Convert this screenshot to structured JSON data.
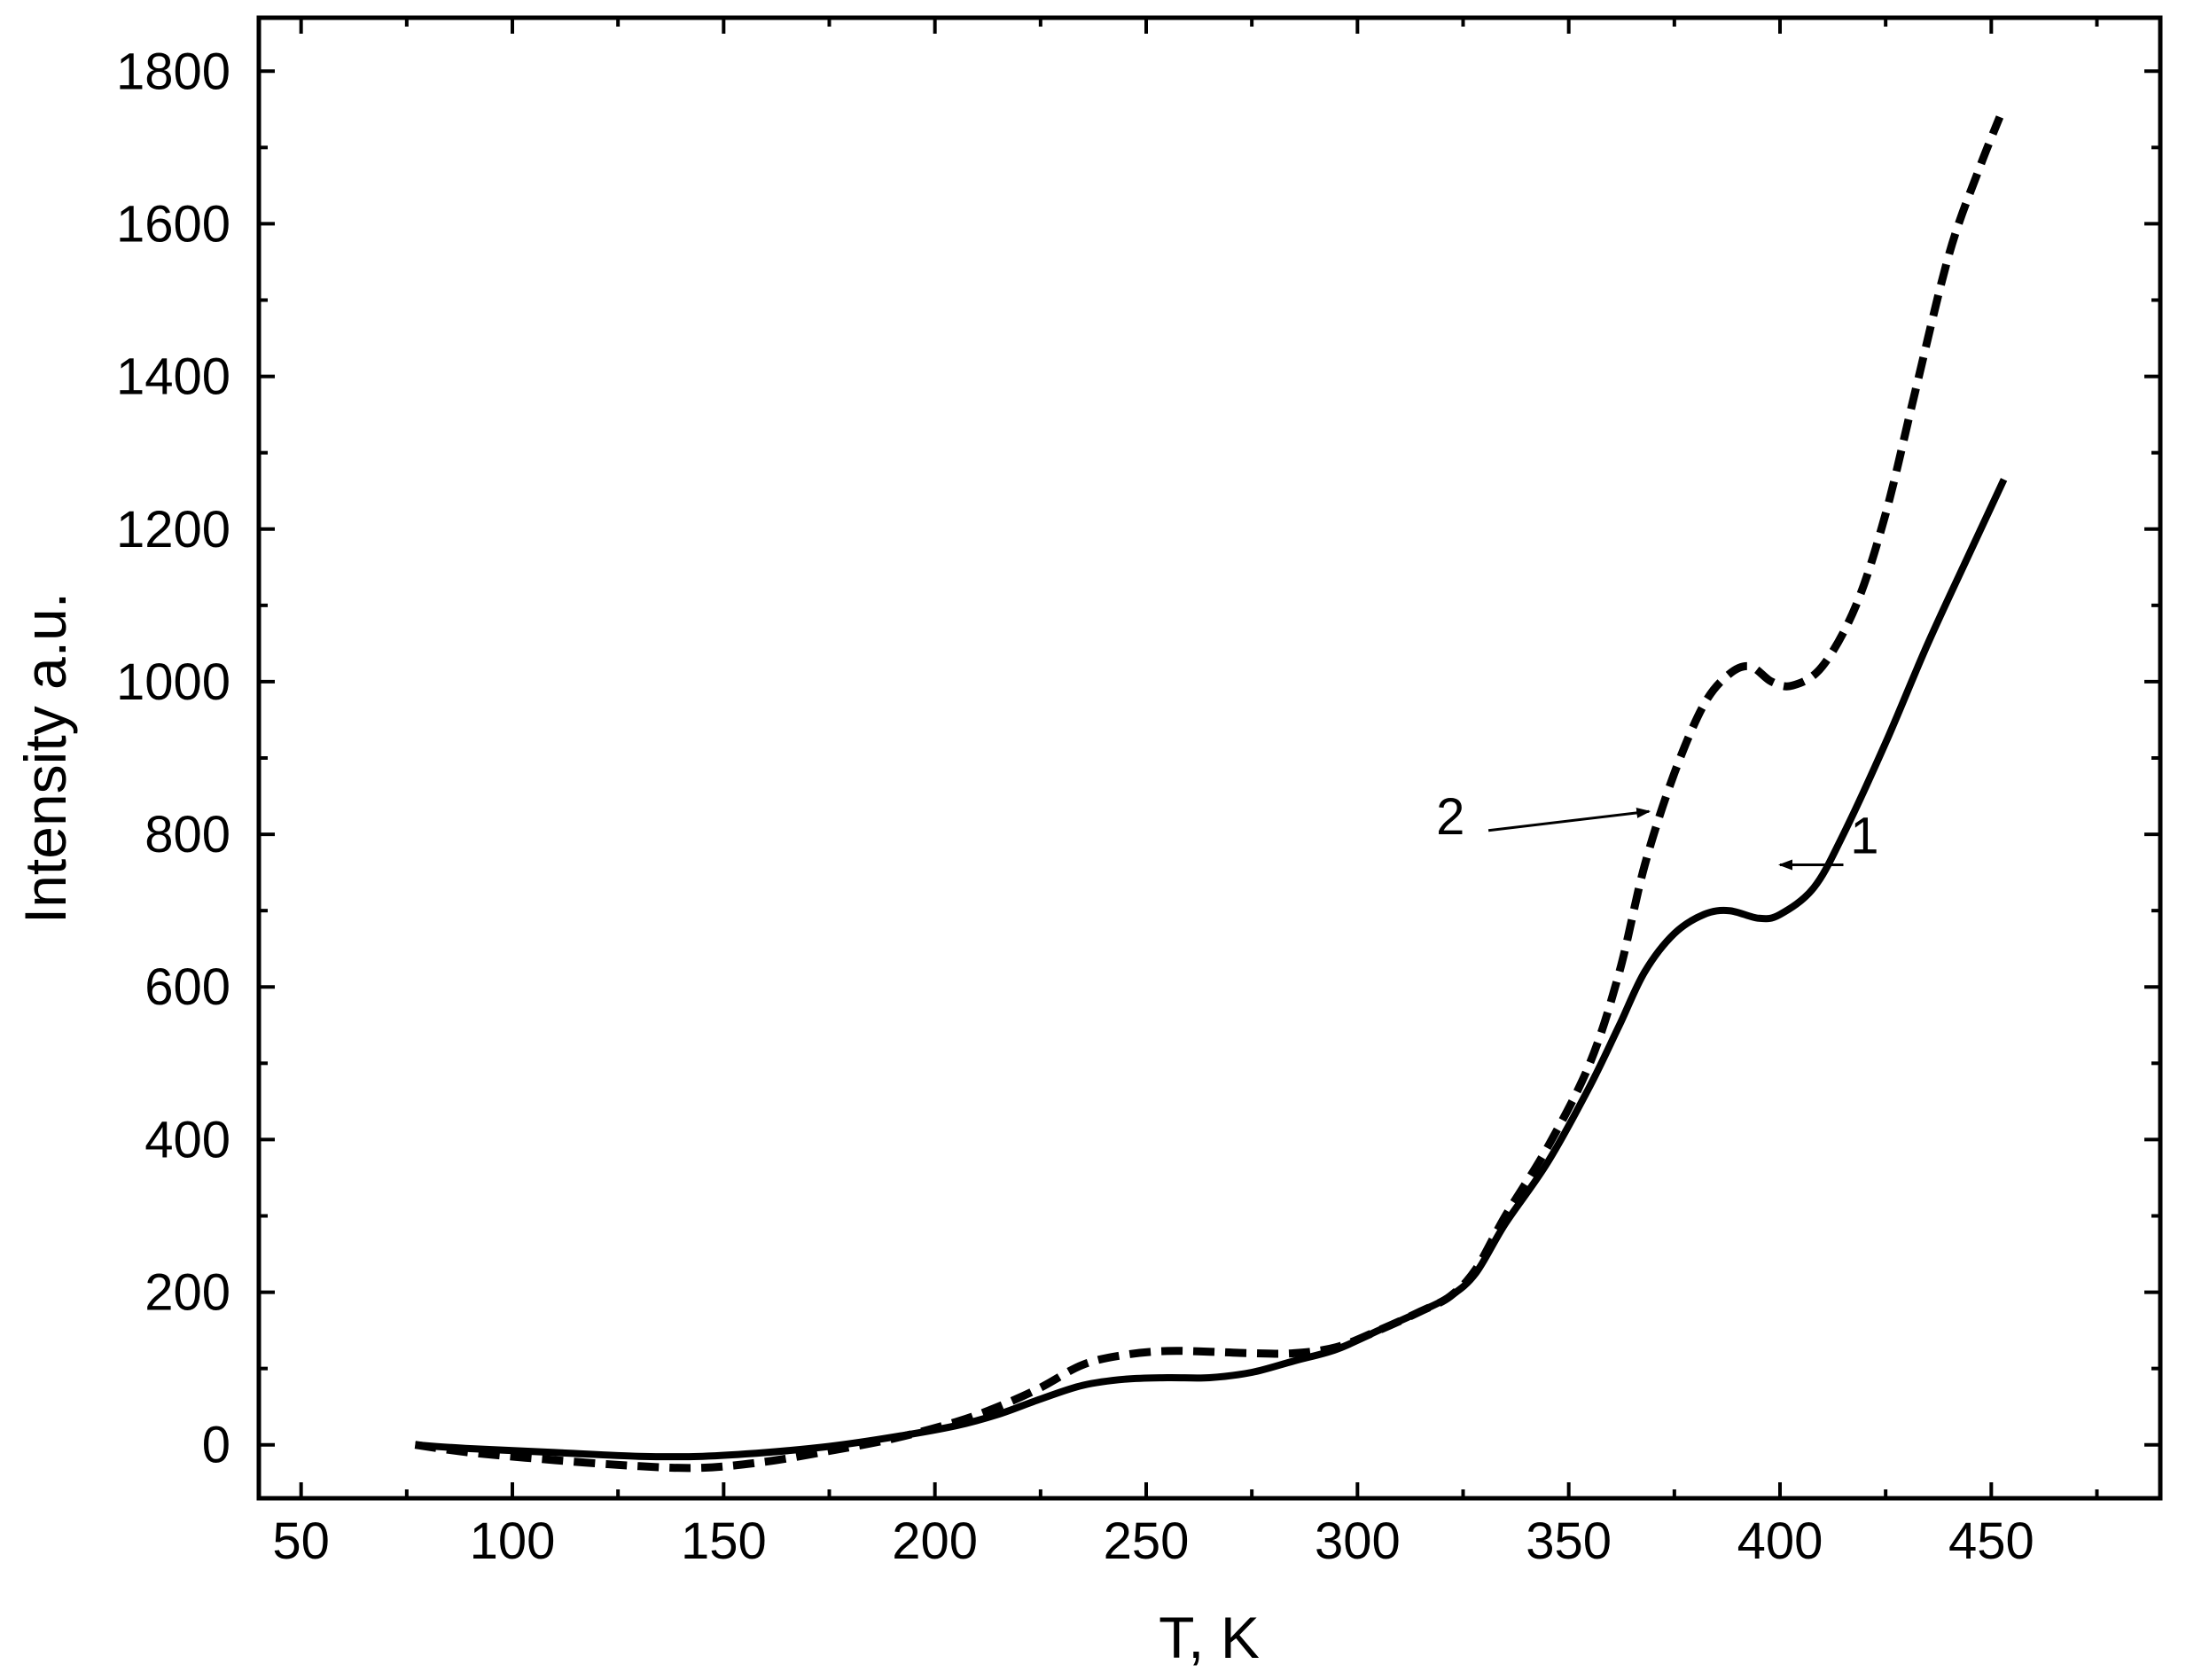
{
  "chart_data": {
    "type": "line",
    "title": "",
    "xlabel": "T, K",
    "ylabel": "Intensity a.u.",
    "xlim": [
      40,
      490
    ],
    "ylim": [
      -70,
      1870
    ],
    "x_ticks": [
      50,
      100,
      150,
      200,
      250,
      300,
      350,
      400,
      450
    ],
    "y_ticks": [
      0,
      200,
      400,
      600,
      800,
      1000,
      1200,
      1400,
      1600,
      1800
    ],
    "grid": false,
    "legend": "none",
    "series": [
      {
        "name": "1",
        "style": "solid",
        "color": "#000000",
        "points": [
          [
            77,
            0
          ],
          [
            90,
            -5
          ],
          [
            110,
            -10
          ],
          [
            130,
            -15
          ],
          [
            145,
            -15
          ],
          [
            160,
            -10
          ],
          [
            175,
            -2
          ],
          [
            190,
            10
          ],
          [
            205,
            25
          ],
          [
            215,
            40
          ],
          [
            225,
            60
          ],
          [
            235,
            78
          ],
          [
            245,
            86
          ],
          [
            255,
            88
          ],
          [
            265,
            88
          ],
          [
            275,
            95
          ],
          [
            285,
            110
          ],
          [
            295,
            125
          ],
          [
            305,
            150
          ],
          [
            315,
            175
          ],
          [
            322,
            195
          ],
          [
            328,
            225
          ],
          [
            335,
            290
          ],
          [
            345,
            370
          ],
          [
            355,
            470
          ],
          [
            362,
            550
          ],
          [
            368,
            620
          ],
          [
            375,
            670
          ],
          [
            382,
            695
          ],
          [
            388,
            700
          ],
          [
            395,
            690
          ],
          [
            400,
            695
          ],
          [
            408,
            730
          ],
          [
            415,
            800
          ],
          [
            425,
            920
          ],
          [
            435,
            1050
          ],
          [
            445,
            1170
          ],
          [
            453,
            1265
          ]
        ]
      },
      {
        "name": "2",
        "style": "dashed",
        "color": "#000000",
        "points": [
          [
            77,
            0
          ],
          [
            90,
            -10
          ],
          [
            110,
            -20
          ],
          [
            130,
            -28
          ],
          [
            145,
            -30
          ],
          [
            160,
            -22
          ],
          [
            175,
            -8
          ],
          [
            190,
            8
          ],
          [
            205,
            30
          ],
          [
            215,
            50
          ],
          [
            225,
            75
          ],
          [
            235,
            105
          ],
          [
            245,
            118
          ],
          [
            255,
            123
          ],
          [
            265,
            122
          ],
          [
            275,
            120
          ],
          [
            285,
            120
          ],
          [
            295,
            128
          ],
          [
            305,
            150
          ],
          [
            315,
            175
          ],
          [
            322,
            195
          ],
          [
            328,
            230
          ],
          [
            335,
            300
          ],
          [
            345,
            390
          ],
          [
            355,
            500
          ],
          [
            362,
            620
          ],
          [
            368,
            760
          ],
          [
            375,
            880
          ],
          [
            382,
            970
          ],
          [
            388,
            1010
          ],
          [
            393,
            1020
          ],
          [
            398,
            1000
          ],
          [
            403,
            995
          ],
          [
            410,
            1020
          ],
          [
            418,
            1100
          ],
          [
            425,
            1220
          ],
          [
            432,
            1380
          ],
          [
            440,
            1560
          ],
          [
            447,
            1670
          ],
          [
            452,
            1740
          ]
        ]
      }
    ],
    "annotations": [
      {
        "text": "1",
        "arrow_from": [
          415,
          760
        ],
        "arrow_to": [
          400,
          760
        ],
        "label_at": [
          420,
          775
        ]
      },
      {
        "text": "2",
        "arrow_from": [
          331,
          805
        ],
        "arrow_to": [
          369,
          830
        ],
        "label_at": [
          322,
          800
        ]
      }
    ]
  }
}
